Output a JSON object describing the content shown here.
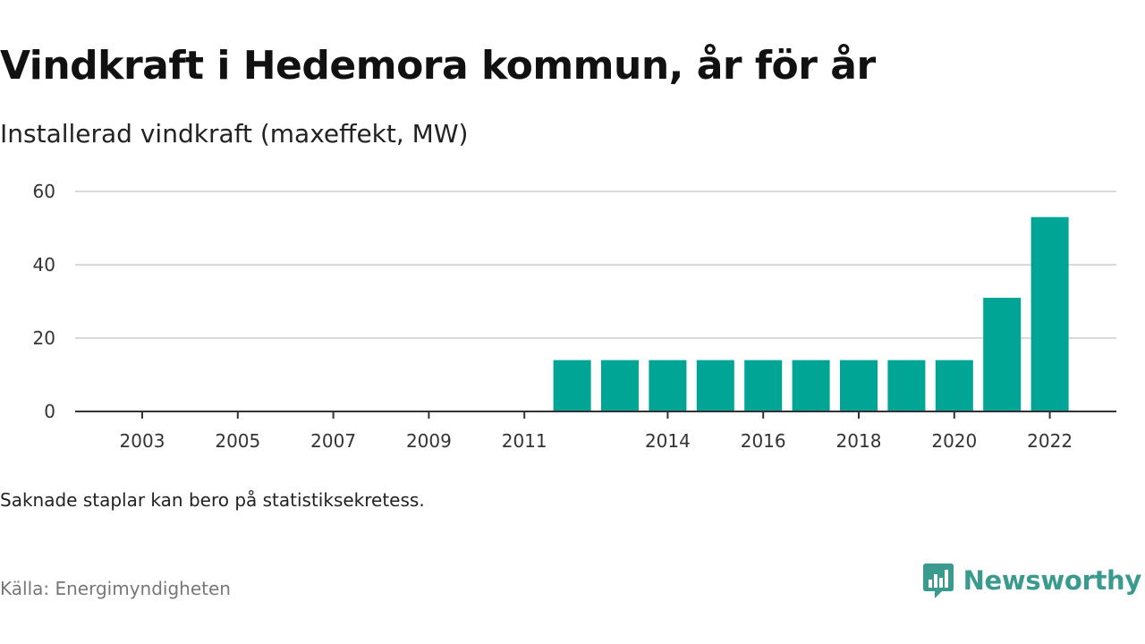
{
  "title": "Vindkraft i Hedemora kommun, år för år",
  "subtitle": "Installerad vindkraft (maxeffekt, MW)",
  "note": "Saknade staplar kan bero på statistiksekretess.",
  "source": "Källa: Energimyndigheten",
  "brand": {
    "name": "Newsworthy",
    "color": "#3a9a8e",
    "icon": "newsworthy-logo-icon"
  },
  "chart_data": {
    "type": "bar",
    "title": "Vindkraft i Hedemora kommun, år för år",
    "subtitle": "Installerad vindkraft (maxeffekt, MW)",
    "categories": [
      2003,
      2004,
      2005,
      2006,
      2007,
      2008,
      2009,
      2010,
      2011,
      2012,
      2013,
      2014,
      2015,
      2016,
      2017,
      2018,
      2019,
      2020,
      2021,
      2022
    ],
    "values": [
      null,
      null,
      null,
      null,
      null,
      null,
      null,
      null,
      null,
      14,
      14,
      14,
      14,
      14,
      14,
      14,
      14,
      14,
      31,
      53
    ],
    "x_tick_labels": [
      "2003",
      "2005",
      "2007",
      "2009",
      "2011",
      "2014",
      "2016",
      "2018",
      "2020",
      "2022"
    ],
    "y_ticks": [
      0,
      20,
      40,
      60
    ],
    "ylim": [
      0,
      60
    ],
    "grid": true,
    "bar_color": "#00a596"
  }
}
